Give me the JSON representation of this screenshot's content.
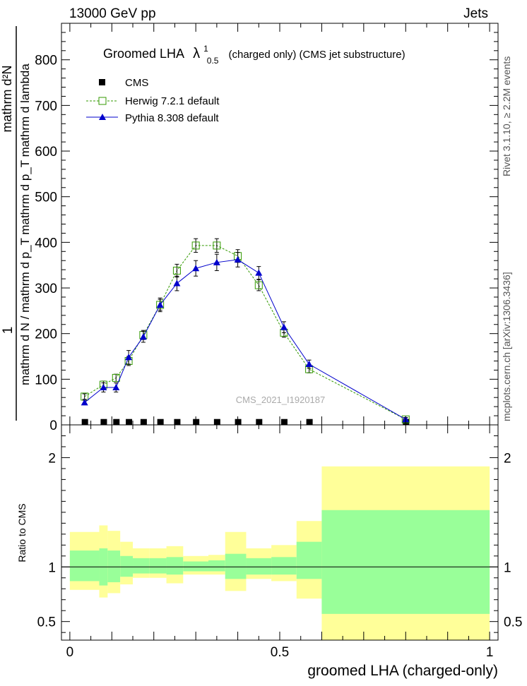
{
  "header": {
    "left": "13000 GeV pp",
    "right": "Jets"
  },
  "side_labels": {
    "rivet": "Rivet 3.1.10, ≥ 2.2M events",
    "mcplots": "mcplots.cern.ch [arXiv:1306.3436]"
  },
  "watermark": "CMS_2021_I1920187",
  "chart_data": [
    {
      "type": "line",
      "title": "Groomed LHA",
      "title_symbol": "λ",
      "title_sup": "1",
      "title_sub": "0.5",
      "title_rest": "(charged only) (CMS jet substructure)",
      "ylabel_top": "1",
      "ylabel_num": "mathrm d²N",
      "ylabel_den": "mathrm d N / mathrm d p_T mathrm d p_T mathrm d lambda",
      "xlim": [
        -0.02,
        1.02
      ],
      "ylim": [
        0,
        880
      ],
      "yticks": [
        0,
        100,
        200,
        300,
        400,
        500,
        600,
        700,
        800
      ],
      "legend_position": "top-left",
      "series": [
        {
          "name": "CMS",
          "color": "#000000",
          "marker": "square",
          "x": [
            0.035,
            0.08,
            0.11,
            0.14,
            0.175,
            0.215,
            0.255,
            0.3,
            0.35,
            0.4,
            0.45,
            0.51,
            0.57,
            0.8
          ],
          "y": [
            2,
            2,
            2,
            2,
            2,
            2,
            2,
            2,
            2,
            2,
            2,
            2,
            2,
            2
          ]
        },
        {
          "name": "Herwig 7.2.1 default",
          "color": "#339900",
          "marker": "open-square",
          "x": [
            0.035,
            0.08,
            0.11,
            0.14,
            0.175,
            0.215,
            0.255,
            0.3,
            0.35,
            0.4,
            0.45,
            0.51,
            0.57,
            0.8
          ],
          "y": [
            62,
            88,
            103,
            140,
            197,
            263,
            338,
            393,
            393,
            370,
            306,
            202,
            122,
            12
          ],
          "err": [
            6,
            8,
            8,
            10,
            10,
            12,
            14,
            15,
            15,
            14,
            12,
            10,
            8,
            4
          ]
        },
        {
          "name": "Pythia 8.308 default",
          "color": "#0000cc",
          "marker": "triangle",
          "x": [
            0.035,
            0.08,
            0.11,
            0.14,
            0.175,
            0.215,
            0.255,
            0.3,
            0.35,
            0.4,
            0.45,
            0.51,
            0.57,
            0.8
          ],
          "y": [
            49,
            82,
            82,
            148,
            193,
            263,
            310,
            343,
            356,
            362,
            333,
            214,
            133,
            12
          ],
          "err": [
            5,
            10,
            10,
            15,
            12,
            15,
            16,
            17,
            18,
            16,
            14,
            12,
            9,
            4
          ]
        }
      ]
    },
    {
      "type": "area",
      "ylabel": "Ratio to CMS",
      "xlabel": "groomed LHA (charged-only)",
      "xlim": [
        -0.02,
        1.02
      ],
      "ylim": [
        0.33,
        2.3
      ],
      "yticks": [
        0.5,
        1,
        2
      ],
      "xticks": [
        0,
        0.5,
        1
      ],
      "band_colors": {
        "inner": "#99ff99",
        "outer": "#ffff99"
      },
      "bins": [
        {
          "lo": 0.0,
          "hi": 0.07,
          "inner_lo": 0.87,
          "inner_hi": 1.15,
          "outer_lo": 0.79,
          "outer_hi": 1.32
        },
        {
          "lo": 0.07,
          "hi": 0.09,
          "inner_lo": 0.83,
          "inner_hi": 1.17,
          "outer_lo": 0.72,
          "outer_hi": 1.38
        },
        {
          "lo": 0.09,
          "hi": 0.12,
          "inner_lo": 0.86,
          "inner_hi": 1.15,
          "outer_lo": 0.76,
          "outer_hi": 1.33
        },
        {
          "lo": 0.12,
          "hi": 0.15,
          "inner_lo": 0.91,
          "inner_hi": 1.1,
          "outer_lo": 0.84,
          "outer_hi": 1.23
        },
        {
          "lo": 0.15,
          "hi": 0.19,
          "inner_lo": 0.94,
          "inner_hi": 1.08,
          "outer_lo": 0.9,
          "outer_hi": 1.17
        },
        {
          "lo": 0.19,
          "hi": 0.23,
          "inner_lo": 0.94,
          "inner_hi": 1.08,
          "outer_lo": 0.9,
          "outer_hi": 1.17
        },
        {
          "lo": 0.23,
          "hi": 0.27,
          "inner_lo": 0.93,
          "inner_hi": 1.09,
          "outer_lo": 0.85,
          "outer_hi": 1.19
        },
        {
          "lo": 0.27,
          "hi": 0.33,
          "inner_lo": 0.96,
          "inner_hi": 1.05,
          "outer_lo": 0.93,
          "outer_hi": 1.1
        },
        {
          "lo": 0.33,
          "hi": 0.37,
          "inner_lo": 0.96,
          "inner_hi": 1.06,
          "outer_lo": 0.93,
          "outer_hi": 1.11
        },
        {
          "lo": 0.37,
          "hi": 0.42,
          "inner_lo": 0.89,
          "inner_hi": 1.12,
          "outer_lo": 0.78,
          "outer_hi": 1.32
        },
        {
          "lo": 0.42,
          "hi": 0.48,
          "inner_lo": 0.93,
          "inner_hi": 1.08,
          "outer_lo": 0.89,
          "outer_hi": 1.17
        },
        {
          "lo": 0.48,
          "hi": 0.54,
          "inner_lo": 0.93,
          "inner_hi": 1.09,
          "outer_lo": 0.87,
          "outer_hi": 1.2
        },
        {
          "lo": 0.54,
          "hi": 0.6,
          "inner_lo": 0.89,
          "inner_hi": 1.23,
          "outer_lo": 0.71,
          "outer_hi": 1.42
        },
        {
          "lo": 0.6,
          "hi": 1.0,
          "inner_lo": 0.57,
          "inner_hi": 1.52,
          "outer_lo": 0.33,
          "outer_hi": 1.92
        }
      ],
      "reference": 1
    }
  ]
}
